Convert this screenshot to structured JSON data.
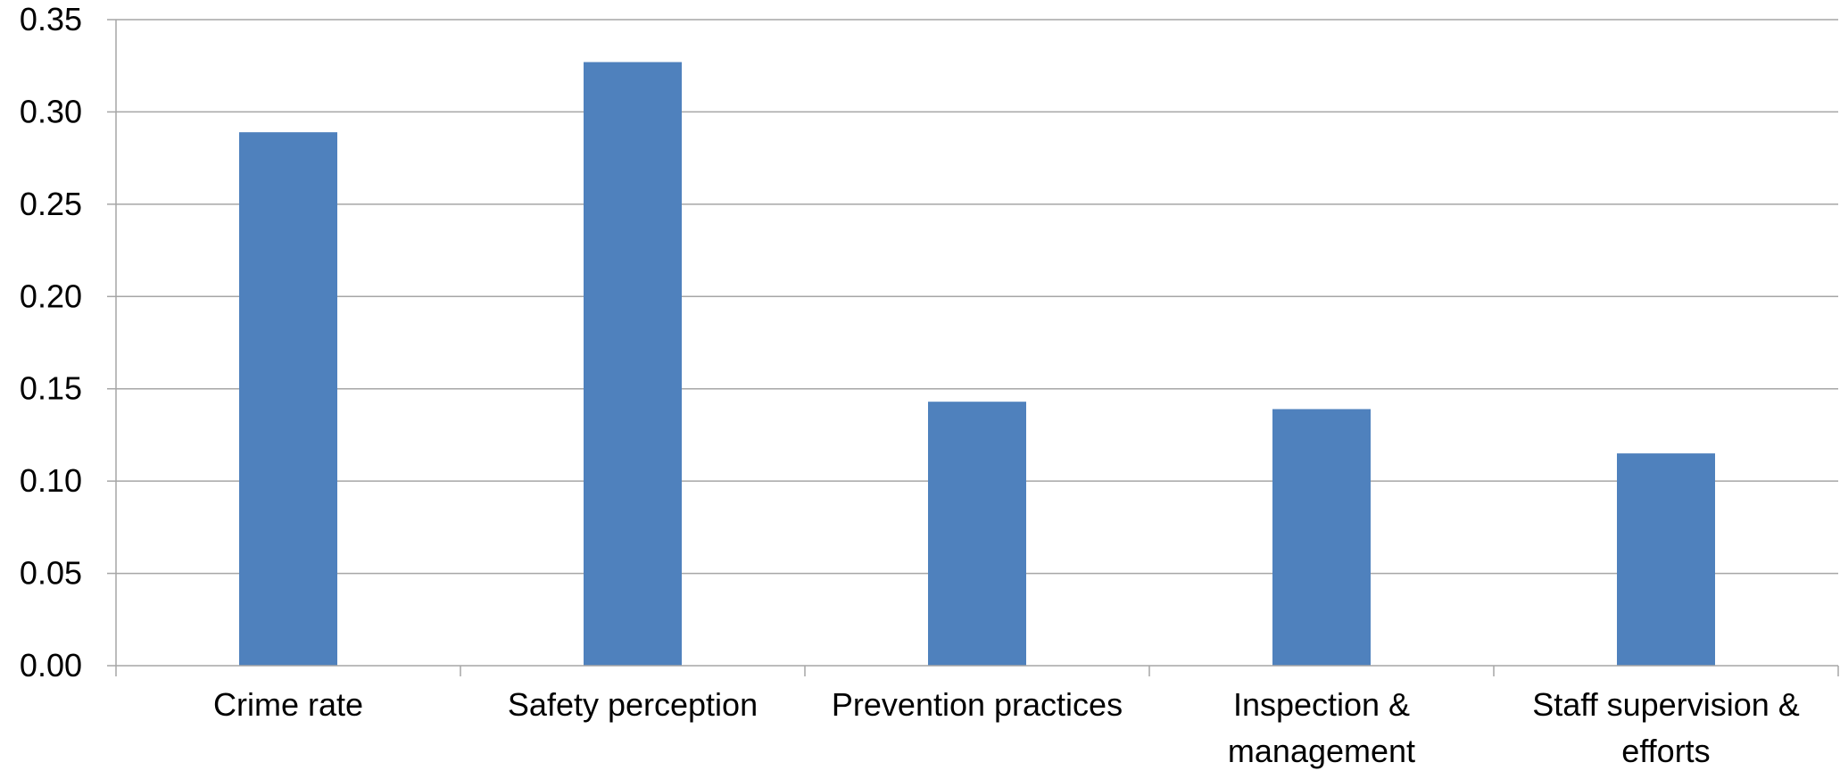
{
  "chart_data": {
    "type": "bar",
    "title": "",
    "xlabel": "",
    "ylabel": "",
    "categories": [
      [
        "Crime rate"
      ],
      [
        "Safety perception"
      ],
      [
        "Prevention practices"
      ],
      [
        "Inspection &",
        "management"
      ],
      [
        "Staff supervision &",
        "efforts"
      ]
    ],
    "values": [
      0.289,
      0.327,
      0.143,
      0.139,
      0.115
    ],
    "ylim": [
      0,
      0.35
    ],
    "yticks": [
      "0.00",
      "0.05",
      "0.10",
      "0.15",
      "0.20",
      "0.25",
      "0.30",
      "0.35"
    ],
    "grid": true,
    "legend": "none",
    "colors": {
      "bar": "#4F81BD",
      "grid": "#A6A6A6",
      "axis": "#A6A6A6",
      "text": "#000000"
    }
  }
}
